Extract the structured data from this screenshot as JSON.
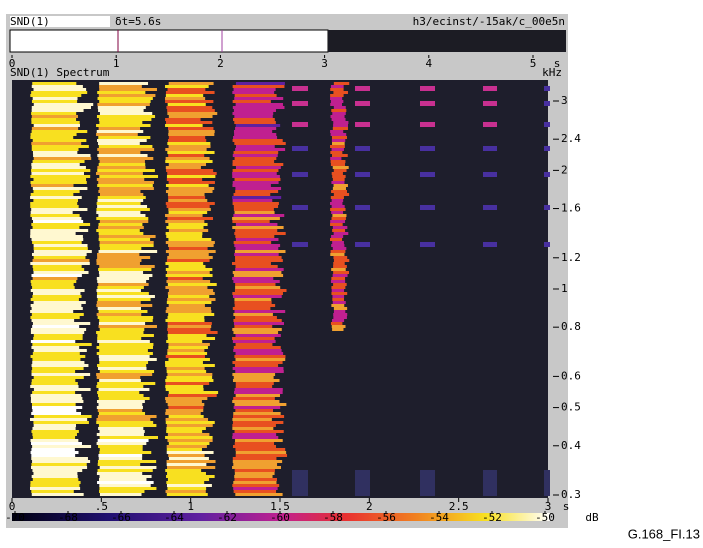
{
  "header": {
    "channel": "SND(1)",
    "delta": "δt=5.6s",
    "path": "h3/ecinst/-15ak/c_00e5n"
  },
  "time_axis": {
    "ticks": [
      0,
      1,
      2,
      3,
      4,
      5
    ],
    "lim": [
      0,
      5
    ],
    "unit": "s"
  },
  "spectrum": {
    "title": "SND(1) Spectrum",
    "freq_unit": "kHz",
    "freq_ticks": [
      3,
      2.4,
      2,
      1.6,
      1.2,
      1,
      0.8,
      0.6,
      0.5,
      0.4,
      0.3
    ],
    "freq_lim": [
      0.3,
      3
    ],
    "log_scale": true,
    "x_ticks": [
      0,
      {
        "value": 0.5,
        "label": ".5"
      },
      1,
      1.5,
      2,
      2.5,
      3
    ],
    "x_lim": [
      0,
      3
    ],
    "x_unit": "s"
  },
  "colorbar": {
    "ticks": [
      -70,
      -68,
      -66,
      -64,
      -62,
      -60,
      -58,
      -56,
      -54,
      -52,
      -50
    ],
    "lim": [
      -70,
      -50
    ],
    "unit": "dB"
  },
  "caption": "G.168_FI.13"
}
